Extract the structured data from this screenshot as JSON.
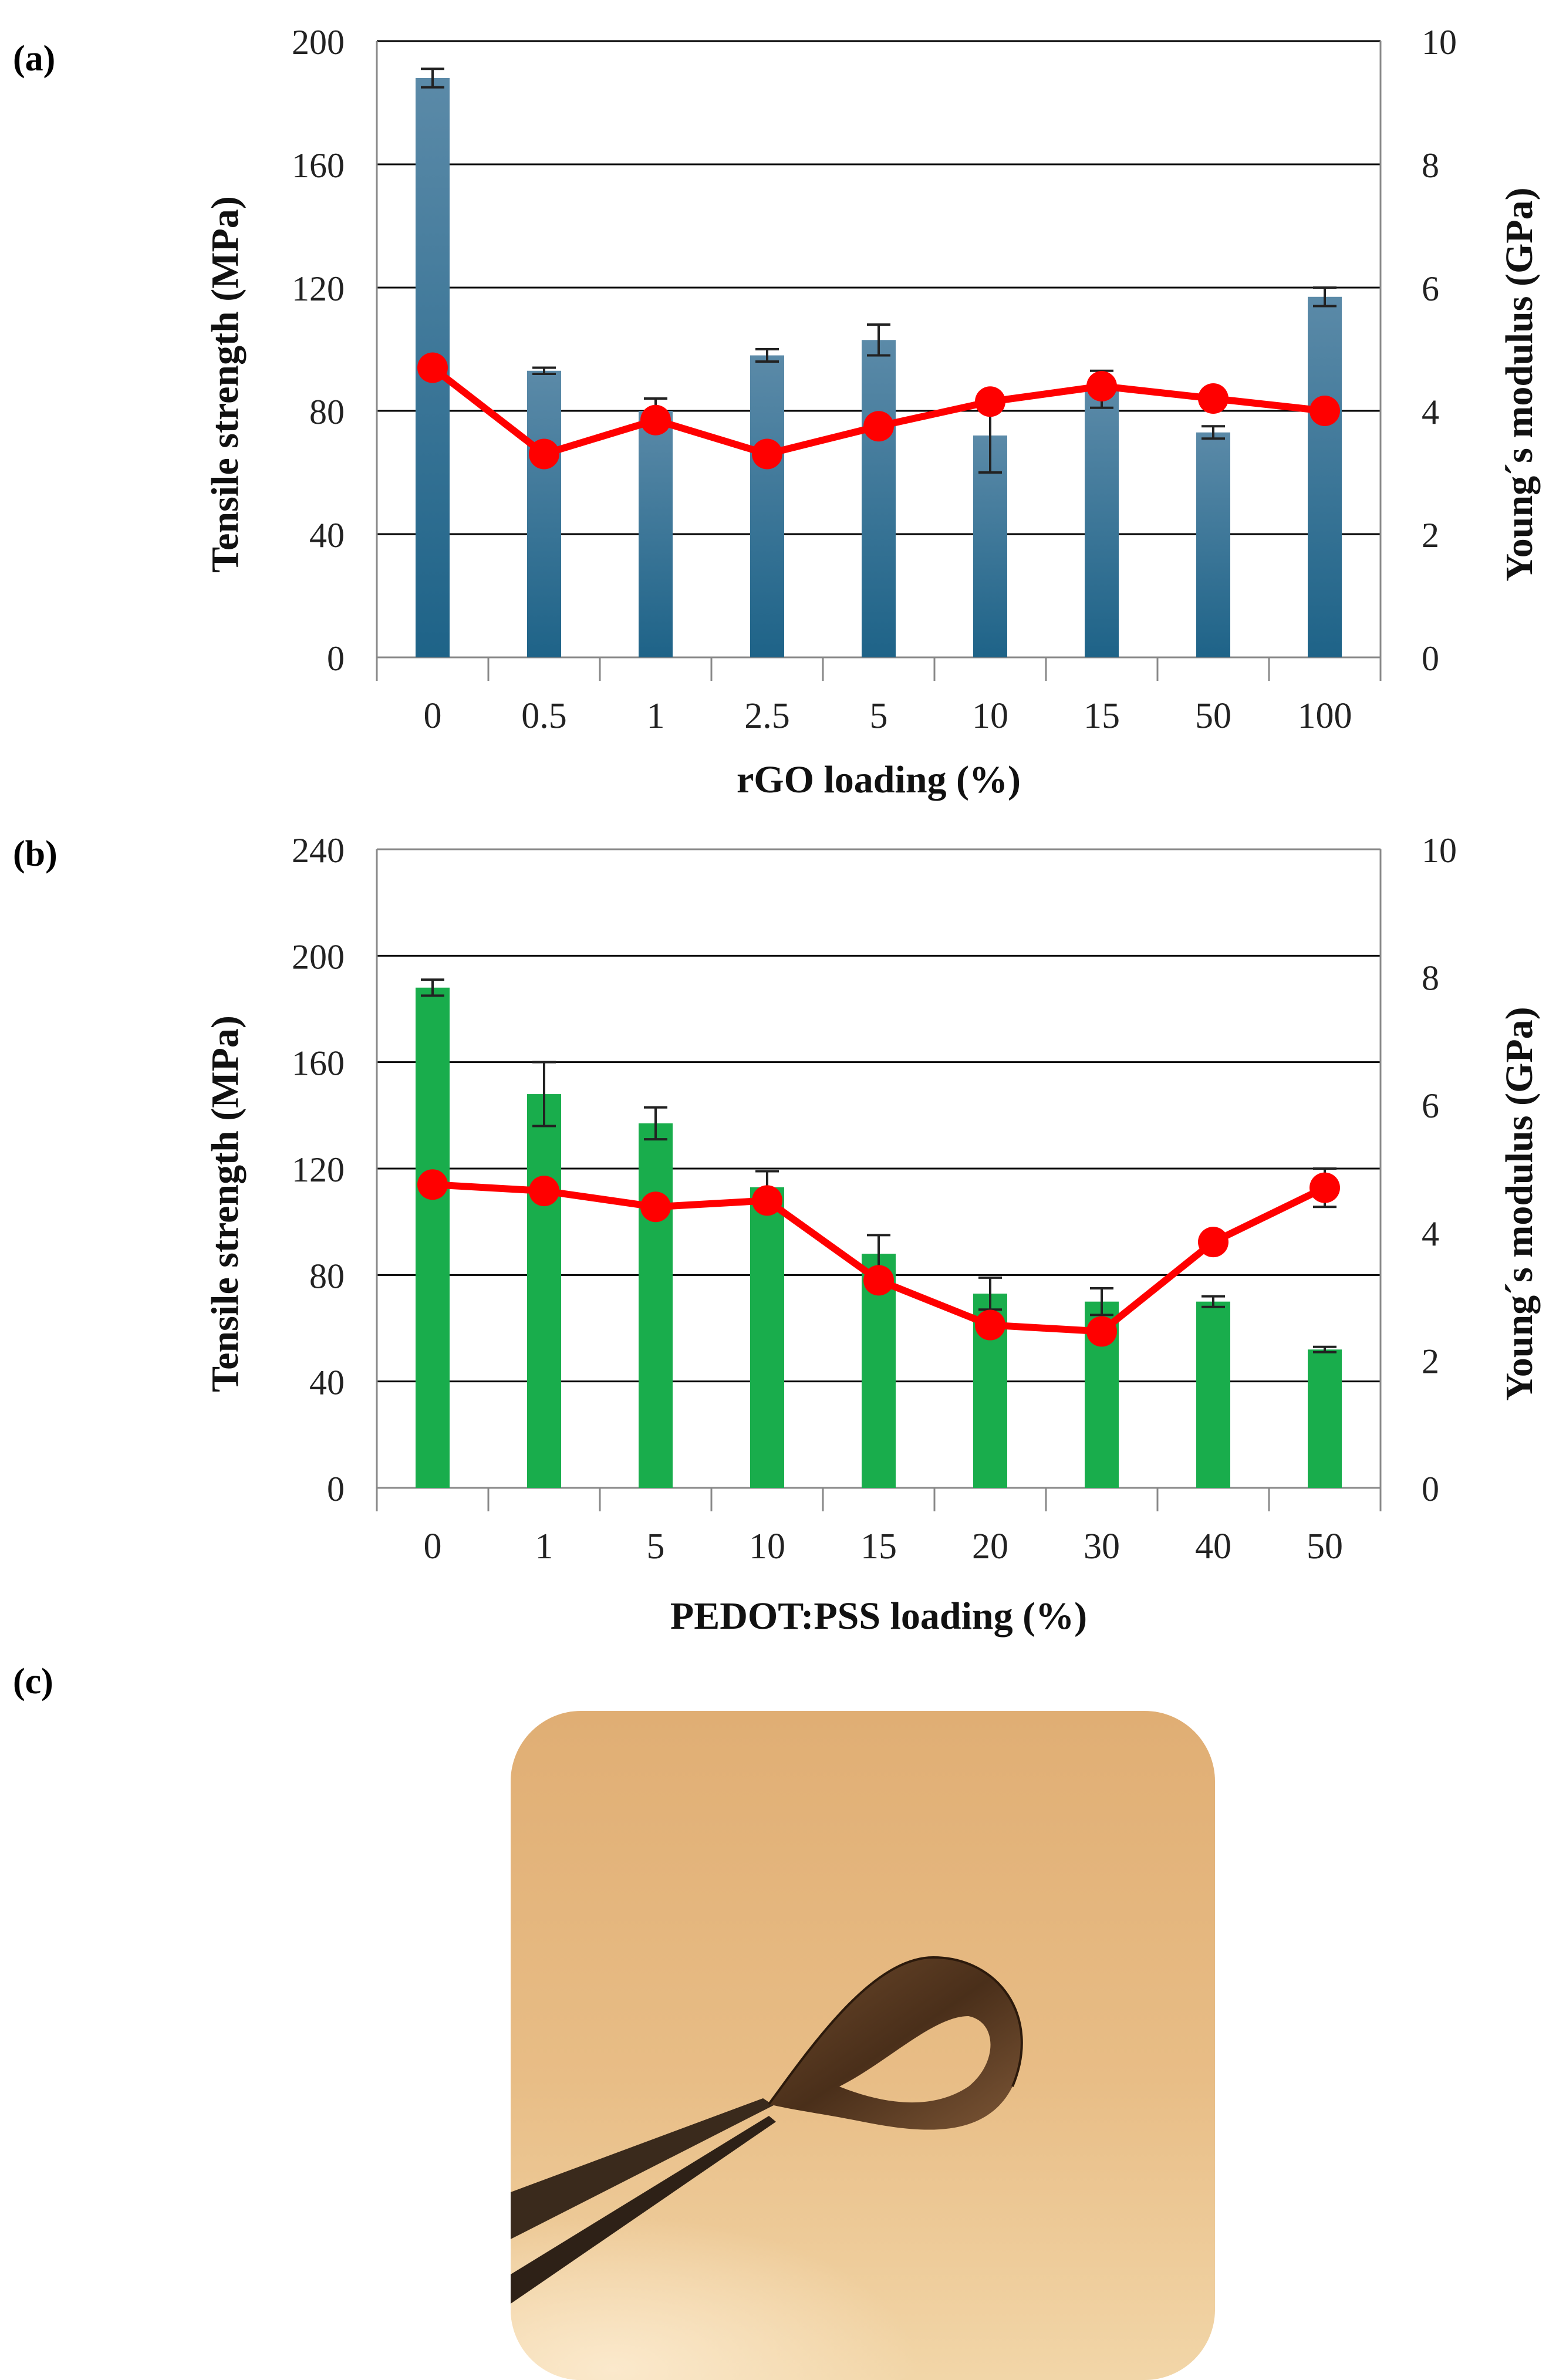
{
  "panel_labels": {
    "a": "(a)",
    "b": "(b)",
    "c": "(c)"
  },
  "colors": {
    "bar_a": "#1e6388",
    "bar_b": "#19ad4c",
    "line": "#ff0000",
    "grid": "#000000",
    "photo_bg": "#e4b47c"
  },
  "chart_data": [
    {
      "type": "bar",
      "panel": "(a)",
      "categories": [
        "0",
        "0.5",
        "1",
        "2.5",
        "5",
        "10",
        "15",
        "50",
        "100"
      ],
      "xlabel": "rGO loading (%)",
      "ylabel": "Tensile strength (MPa)",
      "y2label": "Young´s modulus (GPa)",
      "ylim": [
        0,
        200
      ],
      "yticks": [
        0,
        40,
        80,
        120,
        160,
        200
      ],
      "y2lim": [
        0,
        10
      ],
      "y2ticks": [
        0,
        2,
        4,
        6,
        8,
        10
      ],
      "grid": true,
      "series": [
        {
          "name": "Tensile strength",
          "kind": "bar",
          "axis": "left",
          "values": [
            188,
            93,
            80,
            98,
            103,
            72,
            87,
            73,
            117
          ],
          "errors": [
            3,
            1,
            4,
            2,
            5,
            12,
            6,
            2,
            3
          ]
        },
        {
          "name": "Young´s modulus",
          "kind": "line",
          "axis": "right",
          "values": [
            4.7,
            3.3,
            3.85,
            3.3,
            3.75,
            4.15,
            4.4,
            4.2,
            4.0
          ]
        }
      ]
    },
    {
      "type": "bar",
      "panel": "(b)",
      "categories": [
        "0",
        "1",
        "5",
        "10",
        "15",
        "20",
        "30",
        "40",
        "50"
      ],
      "xlabel": "PEDOT:PSS loading (%)",
      "ylabel": "Tensile strength (MPa)",
      "y2label": "Young´s modulus (GPa)",
      "ylim": [
        0,
        240
      ],
      "yticks": [
        0,
        40,
        80,
        120,
        160,
        200,
        240
      ],
      "y2lim": [
        0,
        10
      ],
      "y2ticks": [
        0,
        2,
        4,
        6,
        8,
        10
      ],
      "grid": true,
      "series": [
        {
          "name": "Tensile strength",
          "kind": "bar",
          "axis": "left",
          "values": [
            188,
            148,
            137,
            113,
            88,
            73,
            70,
            70,
            52
          ],
          "errors": [
            3,
            12,
            6,
            6,
            7,
            6,
            5,
            2,
            1
          ]
        },
        {
          "name": "Young´s modulus",
          "kind": "line",
          "axis": "right",
          "values": [
            4.75,
            4.65,
            4.4,
            4.5,
            3.25,
            2.55,
            2.45,
            3.85,
            4.7
          ],
          "errors": [
            0,
            0,
            0,
            0,
            0,
            0,
            0,
            0,
            0.3
          ]
        }
      ]
    }
  ]
}
